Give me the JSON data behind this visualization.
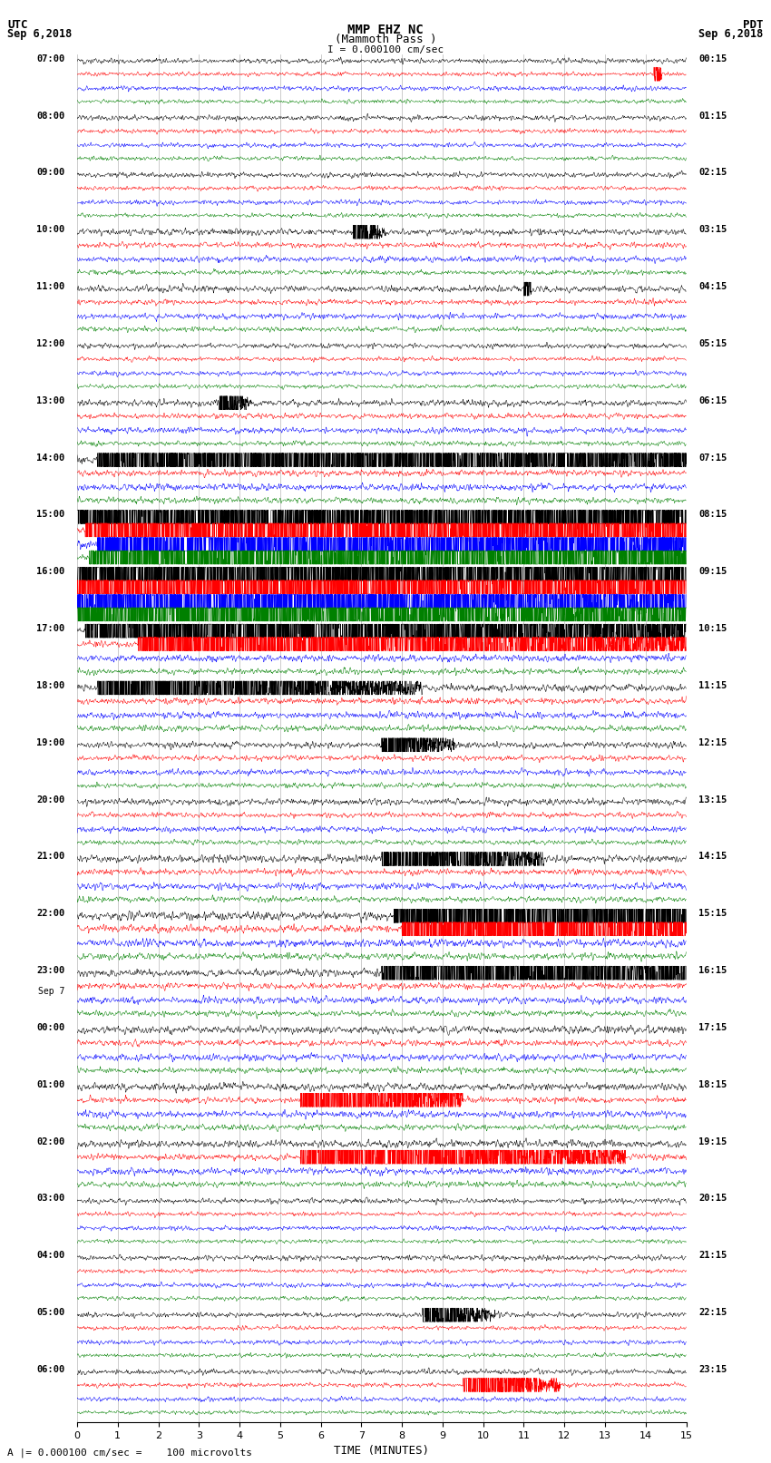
{
  "title_line1": "MMP EHZ NC",
  "title_line2": "(Mammoth Pass )",
  "scale_text": "I = 0.000100 cm/sec",
  "bg_color": "#ffffff",
  "trace_colors": [
    "black",
    "red",
    "blue",
    "green"
  ],
  "num_rows": 24,
  "left_times": [
    "07:00",
    "08:00",
    "09:00",
    "10:00",
    "11:00",
    "12:00",
    "13:00",
    "14:00",
    "15:00",
    "16:00",
    "17:00",
    "18:00",
    "19:00",
    "20:00",
    "21:00",
    "22:00",
    "23:00",
    "00:00",
    "01:00",
    "02:00",
    "03:00",
    "04:00",
    "05:00",
    "06:00"
  ],
  "sep7_row": 17,
  "right_times": [
    "00:15",
    "01:15",
    "02:15",
    "03:15",
    "04:15",
    "05:15",
    "06:15",
    "07:15",
    "08:15",
    "09:15",
    "10:15",
    "11:15",
    "12:15",
    "13:15",
    "14:15",
    "15:15",
    "16:15",
    "17:15",
    "18:15",
    "19:15",
    "20:15",
    "21:15",
    "22:15",
    "23:15"
  ],
  "bottom_label": "TIME (MINUTES)",
  "bottom_note": "= 0.000100 cm/sec =    100 microvolts",
  "xlim": [
    0,
    15
  ],
  "xticks": [
    0,
    1,
    2,
    3,
    4,
    5,
    6,
    7,
    8,
    9,
    10,
    11,
    12,
    13,
    14,
    15
  ],
  "figsize": [
    8.5,
    16.13
  ],
  "dpi": 100,
  "base_noise": 0.06,
  "trace_lw": 0.35,
  "N": 3000
}
